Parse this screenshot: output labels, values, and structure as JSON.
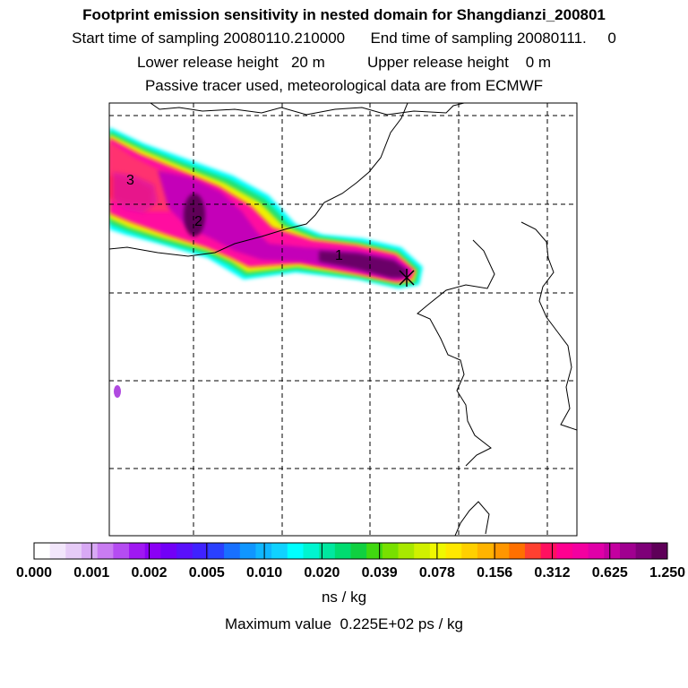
{
  "figure": {
    "title": "Footprint emission sensitivity in nested domain for Shangdianzi_200801",
    "start_label": "Start time of sampling",
    "start_value": "20080110.210000",
    "end_label": "End time of sampling",
    "end_value": "20080111.     0",
    "lower_label": "Lower release height",
    "lower_value": "20 m",
    "upper_label": "Upper release height",
    "upper_value": "0 m",
    "tracer_line": "Passive tracer used, meteorological data are from ECMWF"
  },
  "plume_labels": [
    "1",
    "2",
    "3"
  ],
  "colorbar": {
    "ticks": [
      "0.000",
      "0.001",
      "0.002",
      "0.005",
      "0.010",
      "0.020",
      "0.039",
      "0.078",
      "0.156",
      "0.312",
      "0.625",
      "1.250"
    ],
    "colors": [
      "#ffffff",
      "#f2e6fb",
      "#e6cbf7",
      "#d8a9f4",
      "#c97cf2",
      "#b54cf2",
      "#a018f2",
      "#8b00f5",
      "#7200f7",
      "#5a10fb",
      "#3f22ff",
      "#2a40ff",
      "#1870ff",
      "#1096ff",
      "#10b6ff",
      "#10d2ff",
      "#00ffff",
      "#00f5d0",
      "#00e8a0",
      "#00dc70",
      "#10d040",
      "#40d810",
      "#78e000",
      "#a8e800",
      "#d0f000",
      "#f0f800",
      "#ffe800",
      "#ffd000",
      "#ffb400",
      "#ff9600",
      "#ff7000",
      "#ff4030",
      "#ff1060",
      "#ff0090",
      "#f400a0",
      "#e000a8",
      "#c400a0",
      "#a00090",
      "#7e0078",
      "#5e0058"
    ],
    "units": "ns / kg",
    "maximum_label": "Maximum value",
    "maximum_value": "0.225E+02 ps / kg"
  }
}
